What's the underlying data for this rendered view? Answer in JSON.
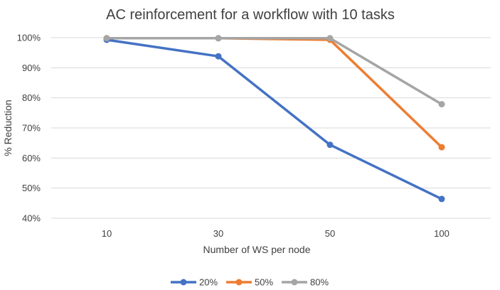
{
  "chart_data": {
    "type": "line",
    "title": "AC reinforcement for a workflow with 10 tasks",
    "xlabel": "Number of WS per node",
    "ylabel": "% Reduction",
    "categories": [
      "10",
      "30",
      "50",
      "100"
    ],
    "ylim": [
      0.4,
      1.0
    ],
    "yticks": [
      "40%",
      "50%",
      "60%",
      "70%",
      "80%",
      "90%",
      "100%"
    ],
    "grid": true,
    "legend_position": "bottom",
    "series": [
      {
        "name": "20%",
        "color": "#4472C4",
        "values": [
          0.993,
          0.938,
          0.644,
          0.464
        ]
      },
      {
        "name": "50%",
        "color": "#ED7D31",
        "values": [
          0.998,
          0.998,
          0.993,
          0.636
        ]
      },
      {
        "name": "80%",
        "color": "#A5A5A5",
        "values": [
          0.998,
          0.998,
          0.998,
          0.779
        ]
      }
    ]
  }
}
